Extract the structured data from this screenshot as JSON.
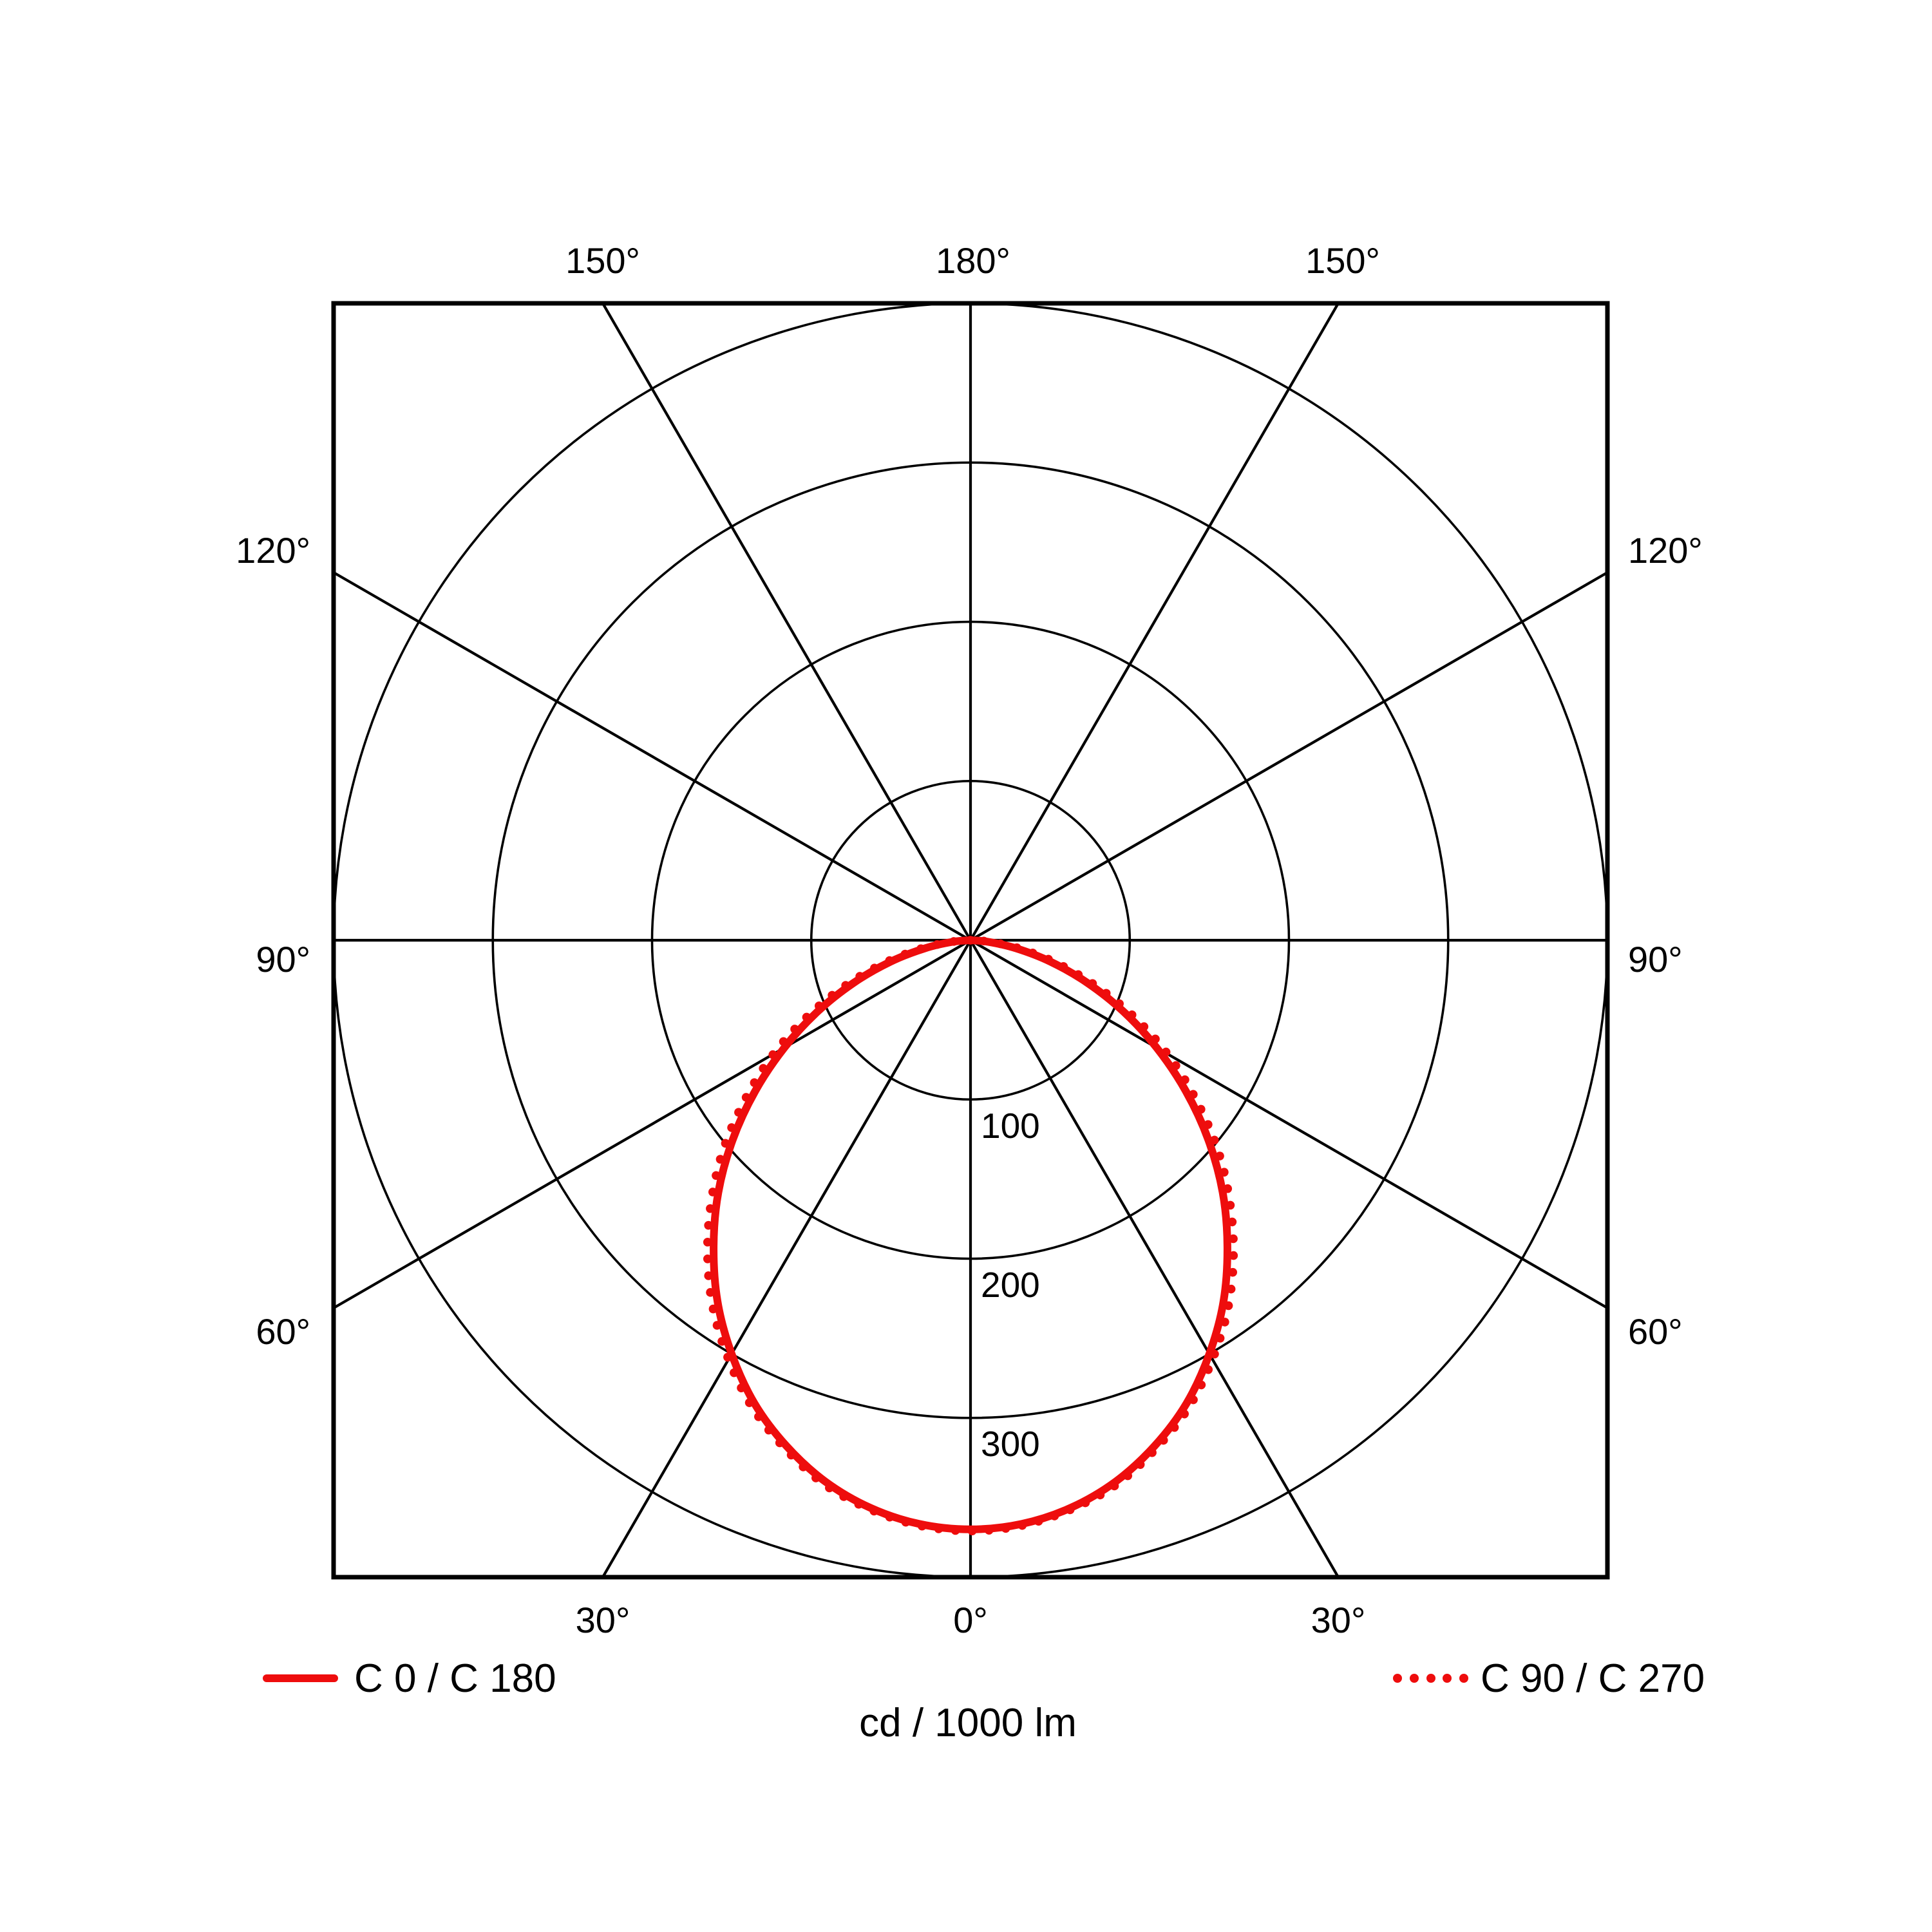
{
  "page": {
    "background": "#ffffff"
  },
  "colors": {
    "curve_red": "#ee0d0d",
    "grid_black": "#000000"
  },
  "caption": {
    "units_label": "cd / 1000 lm"
  },
  "legend": {
    "items": [
      {
        "label": "C 0 / C 180",
        "style": "solid"
      },
      {
        "label": "C 90 / C 270",
        "style": "dotted"
      }
    ]
  },
  "chart_data": {
    "type": "polar",
    "title": "",
    "subtitle": "",
    "units_label": "cd / 1000 lm",
    "grid": true,
    "legend_position": "bottom",
    "radial_axis": {
      "max": 400,
      "ring_step": 100,
      "tick_labels": [
        "100",
        "200",
        "300"
      ]
    },
    "angle_grid_deg": [
      0,
      30,
      60,
      90,
      120,
      150
    ],
    "labels": {
      "top": [
        "150°",
        "180°",
        "150°"
      ],
      "left": [
        "120°",
        "90°",
        "60°"
      ],
      "right": [
        "120°",
        "90°",
        "60°"
      ],
      "bottom": [
        "30°",
        "0°",
        "30°"
      ]
    },
    "symmetry": "values mirrored left/right of 0° axis",
    "series": [
      {
        "name": "C 0 / C 180",
        "style": "solid",
        "color": "#ee0d0d",
        "angles_deg": [
          0,
          5,
          10,
          15,
          20,
          25,
          30,
          35,
          40,
          45,
          50,
          55,
          60,
          65,
          70,
          75,
          80,
          85,
          90
        ],
        "values_cd_per_1000lm": [
          370,
          368,
          362,
          352,
          338,
          321,
          300,
          277,
          251,
          224,
          195,
          165,
          135,
          106,
          78,
          52,
          29,
          11,
          0
        ]
      },
      {
        "name": "C 90 / C 270",
        "style": "dotted",
        "color": "#ee0d0d",
        "angles_deg": [
          0,
          5,
          10,
          15,
          20,
          25,
          30,
          35,
          40,
          45,
          50,
          55,
          60,
          65,
          70,
          75,
          80,
          85,
          90
        ],
        "values_cd_per_1000lm": [
          371,
          369,
          363,
          354,
          340,
          324,
          304,
          282,
          257,
          230,
          202,
          172,
          143,
          113,
          84,
          57,
          33,
          13,
          0
        ]
      }
    ]
  }
}
